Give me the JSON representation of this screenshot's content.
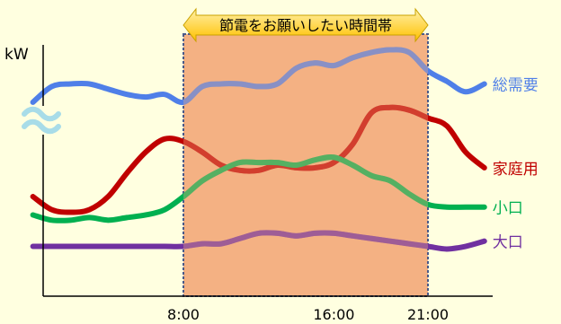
{
  "chart_data": {
    "type": "line",
    "title": "",
    "xlabel": "",
    "ylabel": "kW",
    "x_ticks": [
      "8:00",
      "16:00",
      "21:00"
    ],
    "highlight": {
      "label": "節電をお願いしたい時間帯",
      "start": "8:00",
      "end": "21:00"
    },
    "grid": false,
    "y_axis_break": true,
    "series": [
      {
        "name": "総需要",
        "color": "#4f7fe8",
        "points": [
          [
            "0:00",
            0.74
          ],
          [
            "1:00",
            0.8
          ],
          [
            "2:00",
            0.81
          ],
          [
            "3:00",
            0.81
          ],
          [
            "4:00",
            0.79
          ],
          [
            "5:00",
            0.77
          ],
          [
            "6:00",
            0.76
          ],
          [
            "7:00",
            0.77
          ],
          [
            "8:00",
            0.74
          ],
          [
            "9:00",
            0.8
          ],
          [
            "10:00",
            0.81
          ],
          [
            "11:00",
            0.81
          ],
          [
            "12:00",
            0.8
          ],
          [
            "13:00",
            0.81
          ],
          [
            "14:00",
            0.87
          ],
          [
            "15:00",
            0.89
          ],
          [
            "16:00",
            0.88
          ],
          [
            "17:00",
            0.91
          ],
          [
            "18:00",
            0.93
          ],
          [
            "19:00",
            0.94
          ],
          [
            "20:00",
            0.93
          ],
          [
            "21:00",
            0.86
          ],
          [
            "22:00",
            0.82
          ],
          [
            "23:00",
            0.78
          ],
          [
            "24:00",
            0.81
          ]
        ]
      },
      {
        "name": "家庭用",
        "color": "#c00000",
        "points": [
          [
            "0:00",
            0.38
          ],
          [
            "1:00",
            0.33
          ],
          [
            "2:00",
            0.32
          ],
          [
            "3:00",
            0.33
          ],
          [
            "4:00",
            0.38
          ],
          [
            "5:00",
            0.47
          ],
          [
            "6:00",
            0.55
          ],
          [
            "7:00",
            0.6
          ],
          [
            "8:00",
            0.59
          ],
          [
            "9:00",
            0.55
          ],
          [
            "10:00",
            0.5
          ],
          [
            "11:00",
            0.48
          ],
          [
            "12:00",
            0.48
          ],
          [
            "13:00",
            0.5
          ],
          [
            "14:00",
            0.49
          ],
          [
            "15:00",
            0.49
          ],
          [
            "16:00",
            0.51
          ],
          [
            "17:00",
            0.58
          ],
          [
            "18:00",
            0.7
          ],
          [
            "19:00",
            0.72
          ],
          [
            "20:00",
            0.71
          ],
          [
            "21:00",
            0.68
          ],
          [
            "22:00",
            0.65
          ],
          [
            "23:00",
            0.55
          ],
          [
            "24:00",
            0.49
          ]
        ]
      },
      {
        "name": "小口",
        "color": "#00b050",
        "points": [
          [
            "0:00",
            0.31
          ],
          [
            "1:00",
            0.29
          ],
          [
            "2:00",
            0.29
          ],
          [
            "3:00",
            0.3
          ],
          [
            "4:00",
            0.29
          ],
          [
            "5:00",
            0.3
          ],
          [
            "6:00",
            0.31
          ],
          [
            "7:00",
            0.33
          ],
          [
            "8:00",
            0.38
          ],
          [
            "9:00",
            0.44
          ],
          [
            "10:00",
            0.48
          ],
          [
            "11:00",
            0.51
          ],
          [
            "12:00",
            0.51
          ],
          [
            "13:00",
            0.51
          ],
          [
            "14:00",
            0.5
          ],
          [
            "15:00",
            0.52
          ],
          [
            "16:00",
            0.53
          ],
          [
            "17:00",
            0.5
          ],
          [
            "18:00",
            0.46
          ],
          [
            "19:00",
            0.44
          ],
          [
            "20:00",
            0.39
          ],
          [
            "21:00",
            0.35
          ],
          [
            "22:00",
            0.34
          ],
          [
            "23:00",
            0.34
          ],
          [
            "24:00",
            0.34
          ]
        ]
      },
      {
        "name": "大口",
        "color": "#7030a0",
        "points": [
          [
            "0:00",
            0.19
          ],
          [
            "1:00",
            0.19
          ],
          [
            "2:00",
            0.19
          ],
          [
            "3:00",
            0.19
          ],
          [
            "4:00",
            0.19
          ],
          [
            "5:00",
            0.19
          ],
          [
            "6:00",
            0.19
          ],
          [
            "7:00",
            0.19
          ],
          [
            "8:00",
            0.19
          ],
          [
            "9:00",
            0.2
          ],
          [
            "10:00",
            0.2
          ],
          [
            "11:00",
            0.22
          ],
          [
            "12:00",
            0.24
          ],
          [
            "13:00",
            0.24
          ],
          [
            "14:00",
            0.23
          ],
          [
            "15:00",
            0.24
          ],
          [
            "16:00",
            0.24
          ],
          [
            "17:00",
            0.23
          ],
          [
            "18:00",
            0.22
          ],
          [
            "19:00",
            0.21
          ],
          [
            "20:00",
            0.2
          ],
          [
            "21:00",
            0.19
          ],
          [
            "22:00",
            0.18
          ],
          [
            "23:00",
            0.19
          ],
          [
            "24:00",
            0.21
          ]
        ]
      }
    ]
  }
}
